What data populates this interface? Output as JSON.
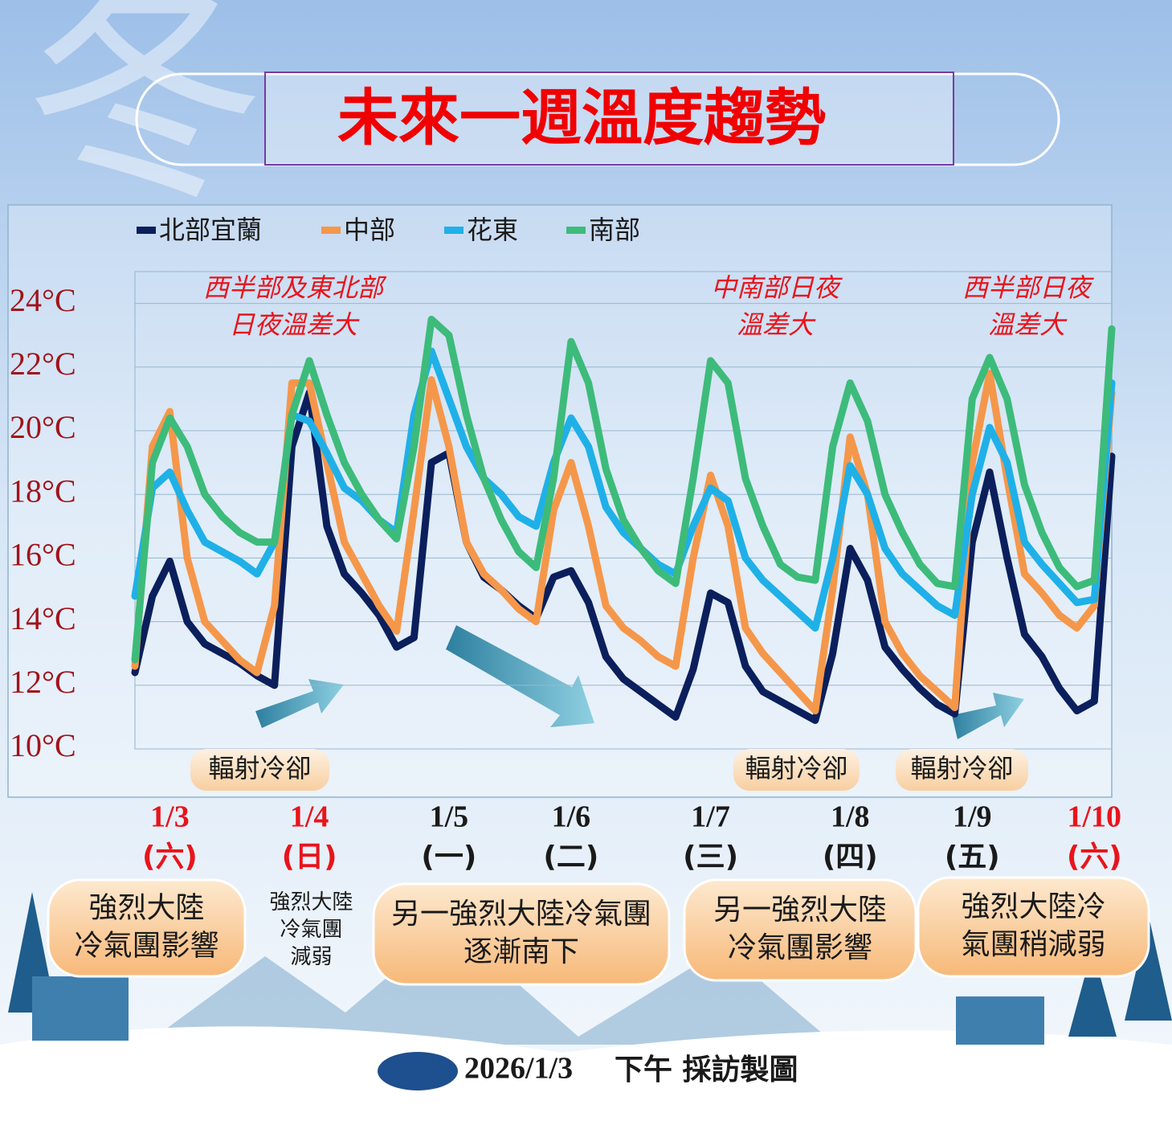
{
  "background_char": "冬",
  "chart_data": {
    "type": "line",
    "title": "未來一週溫度趨勢",
    "categories": [
      null,
      null,
      "1/3",
      null,
      null,
      null,
      null,
      null,
      null,
      null,
      "1/4",
      null,
      null,
      null,
      null,
      null,
      null,
      null,
      "1/5",
      null,
      null,
      null,
      null,
      null,
      null,
      "1/6",
      null,
      null,
      null,
      null,
      null,
      null,
      null,
      "1/7",
      null,
      null,
      null,
      null,
      null,
      null,
      null,
      "1/8",
      null,
      null,
      null,
      null,
      null,
      null,
      "1/9",
      null,
      null,
      null,
      null,
      null,
      null,
      "1/10",
      null
    ],
    "weekdays": [
      null,
      null,
      "(六)",
      null,
      null,
      null,
      null,
      null,
      null,
      null,
      "(日)",
      null,
      null,
      null,
      null,
      null,
      null,
      null,
      "(一)",
      null,
      null,
      null,
      null,
      null,
      null,
      "(二)",
      null,
      null,
      null,
      null,
      null,
      null,
      null,
      "(三)",
      null,
      null,
      null,
      null,
      null,
      null,
      null,
      "(四)",
      null,
      null,
      null,
      null,
      null,
      null,
      "(五)",
      null,
      null,
      null,
      null,
      null,
      null,
      "(六)",
      null
    ],
    "ylim": [
      10,
      25
    ],
    "yticks": [
      {
        "value": 10,
        "label": "10°C"
      },
      {
        "value": 12,
        "label": "12°C"
      },
      {
        "value": 14,
        "label": "14°C"
      },
      {
        "value": 16,
        "label": "16°C"
      },
      {
        "value": 18,
        "label": "18°C"
      },
      {
        "value": 20,
        "label": "20°C"
      },
      {
        "value": 22,
        "label": "22°C"
      },
      {
        "value": 24,
        "label": "24°C"
      }
    ],
    "grid": true,
    "series": [
      {
        "name": "北部宜蘭",
        "color": "#0b1f5c",
        "values": [
          12.4,
          14.8,
          15.9,
          14.0,
          13.3,
          13.0,
          12.7,
          12.3,
          12.0,
          19.5,
          21.2,
          17.0,
          15.5,
          14.9,
          14.2,
          13.2,
          13.5,
          19.0,
          19.3,
          16.5,
          15.4,
          15.0,
          14.5,
          14.1,
          15.4,
          15.6,
          14.6,
          12.9,
          12.2,
          11.8,
          11.4,
          11.0,
          12.5,
          14.9,
          14.6,
          12.6,
          11.8,
          11.5,
          11.2,
          10.9,
          13.0,
          16.3,
          15.3,
          13.2,
          12.5,
          11.9,
          11.4,
          11.1,
          16.5,
          18.7,
          16.0,
          13.6,
          12.9,
          11.9,
          11.2,
          11.5,
          19.2
        ]
      },
      {
        "name": "中部",
        "color": "#f5974a",
        "values": [
          12.6,
          19.5,
          20.6,
          16.0,
          14.0,
          13.4,
          12.8,
          12.4,
          14.5,
          21.5,
          21.5,
          19.0,
          16.5,
          15.5,
          14.5,
          13.7,
          17.5,
          21.6,
          19.5,
          16.5,
          15.5,
          15.0,
          14.4,
          14.0,
          17.5,
          19.0,
          17.0,
          14.5,
          13.8,
          13.4,
          12.9,
          12.6,
          16.0,
          18.6,
          17.0,
          13.8,
          13.0,
          12.4,
          11.8,
          11.2,
          15.0,
          19.8,
          18.0,
          14.0,
          13.0,
          12.3,
          11.8,
          11.3,
          19.0,
          21.8,
          18.5,
          15.5,
          14.9,
          14.2,
          13.8,
          14.5,
          21.2
        ]
      },
      {
        "name": "花東",
        "color": "#1fb0e8",
        "values": [
          14.8,
          18.2,
          18.7,
          17.5,
          16.5,
          16.2,
          15.9,
          15.5,
          16.5,
          20.5,
          20.3,
          19.3,
          18.2,
          17.8,
          17.2,
          16.8,
          20.5,
          22.5,
          21.0,
          19.5,
          18.5,
          18.0,
          17.3,
          17.0,
          19.0,
          20.4,
          19.5,
          17.6,
          16.8,
          16.3,
          15.8,
          15.5,
          17.0,
          18.2,
          17.8,
          16.0,
          15.3,
          14.8,
          14.3,
          13.8,
          16.0,
          18.9,
          18.0,
          16.3,
          15.5,
          15.0,
          14.5,
          14.2,
          18.0,
          20.1,
          19.0,
          16.5,
          15.8,
          15.2,
          14.6,
          14.7,
          21.5
        ]
      },
      {
        "name": "南部",
        "color": "#3dbb7a",
        "values": [
          12.8,
          19.0,
          20.4,
          19.5,
          18.0,
          17.3,
          16.8,
          16.5,
          16.5,
          20.5,
          22.2,
          20.5,
          19.0,
          18.0,
          17.2,
          16.6,
          19.5,
          23.5,
          23.0,
          20.5,
          18.5,
          17.2,
          16.2,
          15.7,
          18.5,
          22.8,
          21.5,
          18.8,
          17.2,
          16.3,
          15.6,
          15.2,
          18.5,
          22.2,
          21.5,
          18.5,
          17.0,
          15.8,
          15.4,
          15.3,
          19.5,
          21.5,
          20.3,
          18.0,
          16.8,
          15.8,
          15.2,
          15.1,
          21.0,
          22.3,
          21.0,
          18.3,
          16.8,
          15.7,
          15.1,
          15.3,
          23.2
        ]
      }
    ],
    "annotations": [
      [
        "西半部及東北部",
        "日夜溫差大"
      ],
      [
        "中南部日夜",
        "溫差大"
      ],
      [
        "西半部日夜",
        "溫差大"
      ]
    ],
    "cooling_labels": [
      "輻射冷卻",
      "輻射冷卻",
      "輻射冷卻"
    ],
    "conditions": [
      [
        "強烈大陸",
        "冷氣團影響"
      ],
      [
        "強烈大陸",
        "冷氣團",
        "減弱"
      ],
      [
        "另一強烈大陸冷氣團",
        "逐漸南下"
      ],
      [
        "另一強烈大陸",
        "冷氣團影響"
      ],
      [
        "強烈大陸冷",
        "氣團稍減弱"
      ]
    ]
  },
  "footer": {
    "date": "2026/1/3",
    "text": "下午 採訪製圖"
  }
}
